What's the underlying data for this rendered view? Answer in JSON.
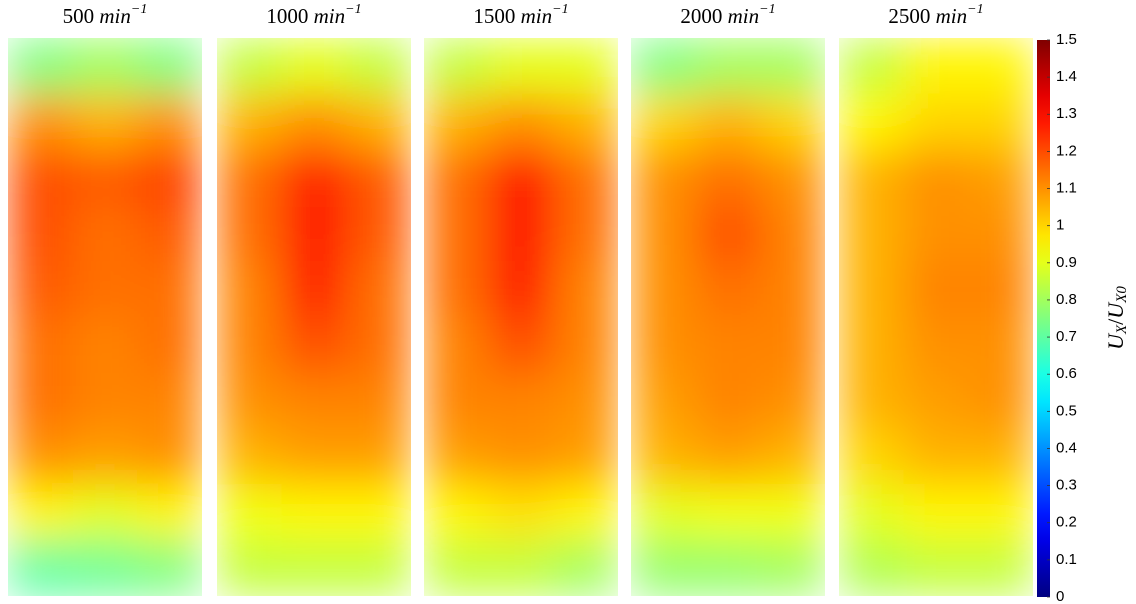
{
  "chart_data": {
    "type": "heatmap",
    "colormap": "jet",
    "zlim": [
      0,
      1.5
    ],
    "zticks": [
      0,
      0.1,
      0.2,
      0.3,
      0.4,
      0.5,
      0.6,
      0.7,
      0.8,
      0.9,
      1,
      1.1,
      1.2,
      1.3,
      1.4,
      1.5
    ],
    "colorbar_label": {
      "base1": "U",
      "sub1": "X",
      "sep": "/",
      "base2": "U",
      "sub2": "X0"
    },
    "panels": [
      {
        "speed": 500,
        "unit": "min",
        "exponent": "−1",
        "z": [
          [
            0.75,
            0.8,
            0.75
          ],
          [
            1.1,
            1.05,
            1.1
          ],
          [
            1.2,
            1.18,
            1.22
          ],
          [
            1.2,
            1.15,
            1.18
          ],
          [
            1.18,
            1.15,
            1.15
          ],
          [
            1.15,
            1.12,
            1.15
          ],
          [
            1.15,
            1.12,
            1.12
          ],
          [
            1.1,
            1.08,
            1.1
          ],
          [
            0.95,
            0.9,
            0.95
          ],
          [
            0.7,
            0.72,
            0.75
          ]
        ]
      },
      {
        "speed": 1000,
        "unit": "min",
        "exponent": "−1",
        "z": [
          [
            0.85,
            0.9,
            0.85
          ],
          [
            1.05,
            1.1,
            1.05
          ],
          [
            1.15,
            1.27,
            1.18
          ],
          [
            1.15,
            1.28,
            1.18
          ],
          [
            1.12,
            1.27,
            1.15
          ],
          [
            1.12,
            1.2,
            1.15
          ],
          [
            1.1,
            1.12,
            1.12
          ],
          [
            1.05,
            1.08,
            1.08
          ],
          [
            0.92,
            0.95,
            0.95
          ],
          [
            0.85,
            0.85,
            0.85
          ]
        ]
      },
      {
        "speed": 1500,
        "unit": "min",
        "exponent": "−1",
        "z": [
          [
            0.85,
            0.9,
            0.9
          ],
          [
            1.05,
            1.1,
            1.05
          ],
          [
            1.15,
            1.3,
            1.15
          ],
          [
            1.15,
            1.3,
            1.15
          ],
          [
            1.15,
            1.28,
            1.12
          ],
          [
            1.12,
            1.2,
            1.12
          ],
          [
            1.12,
            1.12,
            1.1
          ],
          [
            1.08,
            1.1,
            1.08
          ],
          [
            0.95,
            0.98,
            0.95
          ],
          [
            0.85,
            0.85,
            0.8
          ]
        ]
      },
      {
        "speed": 2000,
        "unit": "min",
        "exponent": "−1",
        "z": [
          [
            0.75,
            0.8,
            0.8
          ],
          [
            1.0,
            1.05,
            1.0
          ],
          [
            1.1,
            1.15,
            1.1
          ],
          [
            1.1,
            1.2,
            1.12
          ],
          [
            1.1,
            1.15,
            1.12
          ],
          [
            1.1,
            1.12,
            1.12
          ],
          [
            1.08,
            1.12,
            1.1
          ],
          [
            1.05,
            1.08,
            1.05
          ],
          [
            0.9,
            0.92,
            0.92
          ],
          [
            0.78,
            0.78,
            0.8
          ]
        ]
      },
      {
        "speed": 2500,
        "unit": "min",
        "exponent": "−1",
        "z": [
          [
            0.85,
            0.95,
            0.95
          ],
          [
            0.95,
            1.0,
            1.0
          ],
          [
            1.05,
            1.1,
            1.08
          ],
          [
            1.05,
            1.1,
            1.1
          ],
          [
            1.05,
            1.12,
            1.12
          ],
          [
            1.05,
            1.1,
            1.1
          ],
          [
            1.05,
            1.08,
            1.1
          ],
          [
            1.0,
            1.05,
            1.05
          ],
          [
            0.9,
            0.95,
            0.95
          ],
          [
            0.82,
            0.85,
            0.85
          ]
        ]
      }
    ]
  }
}
